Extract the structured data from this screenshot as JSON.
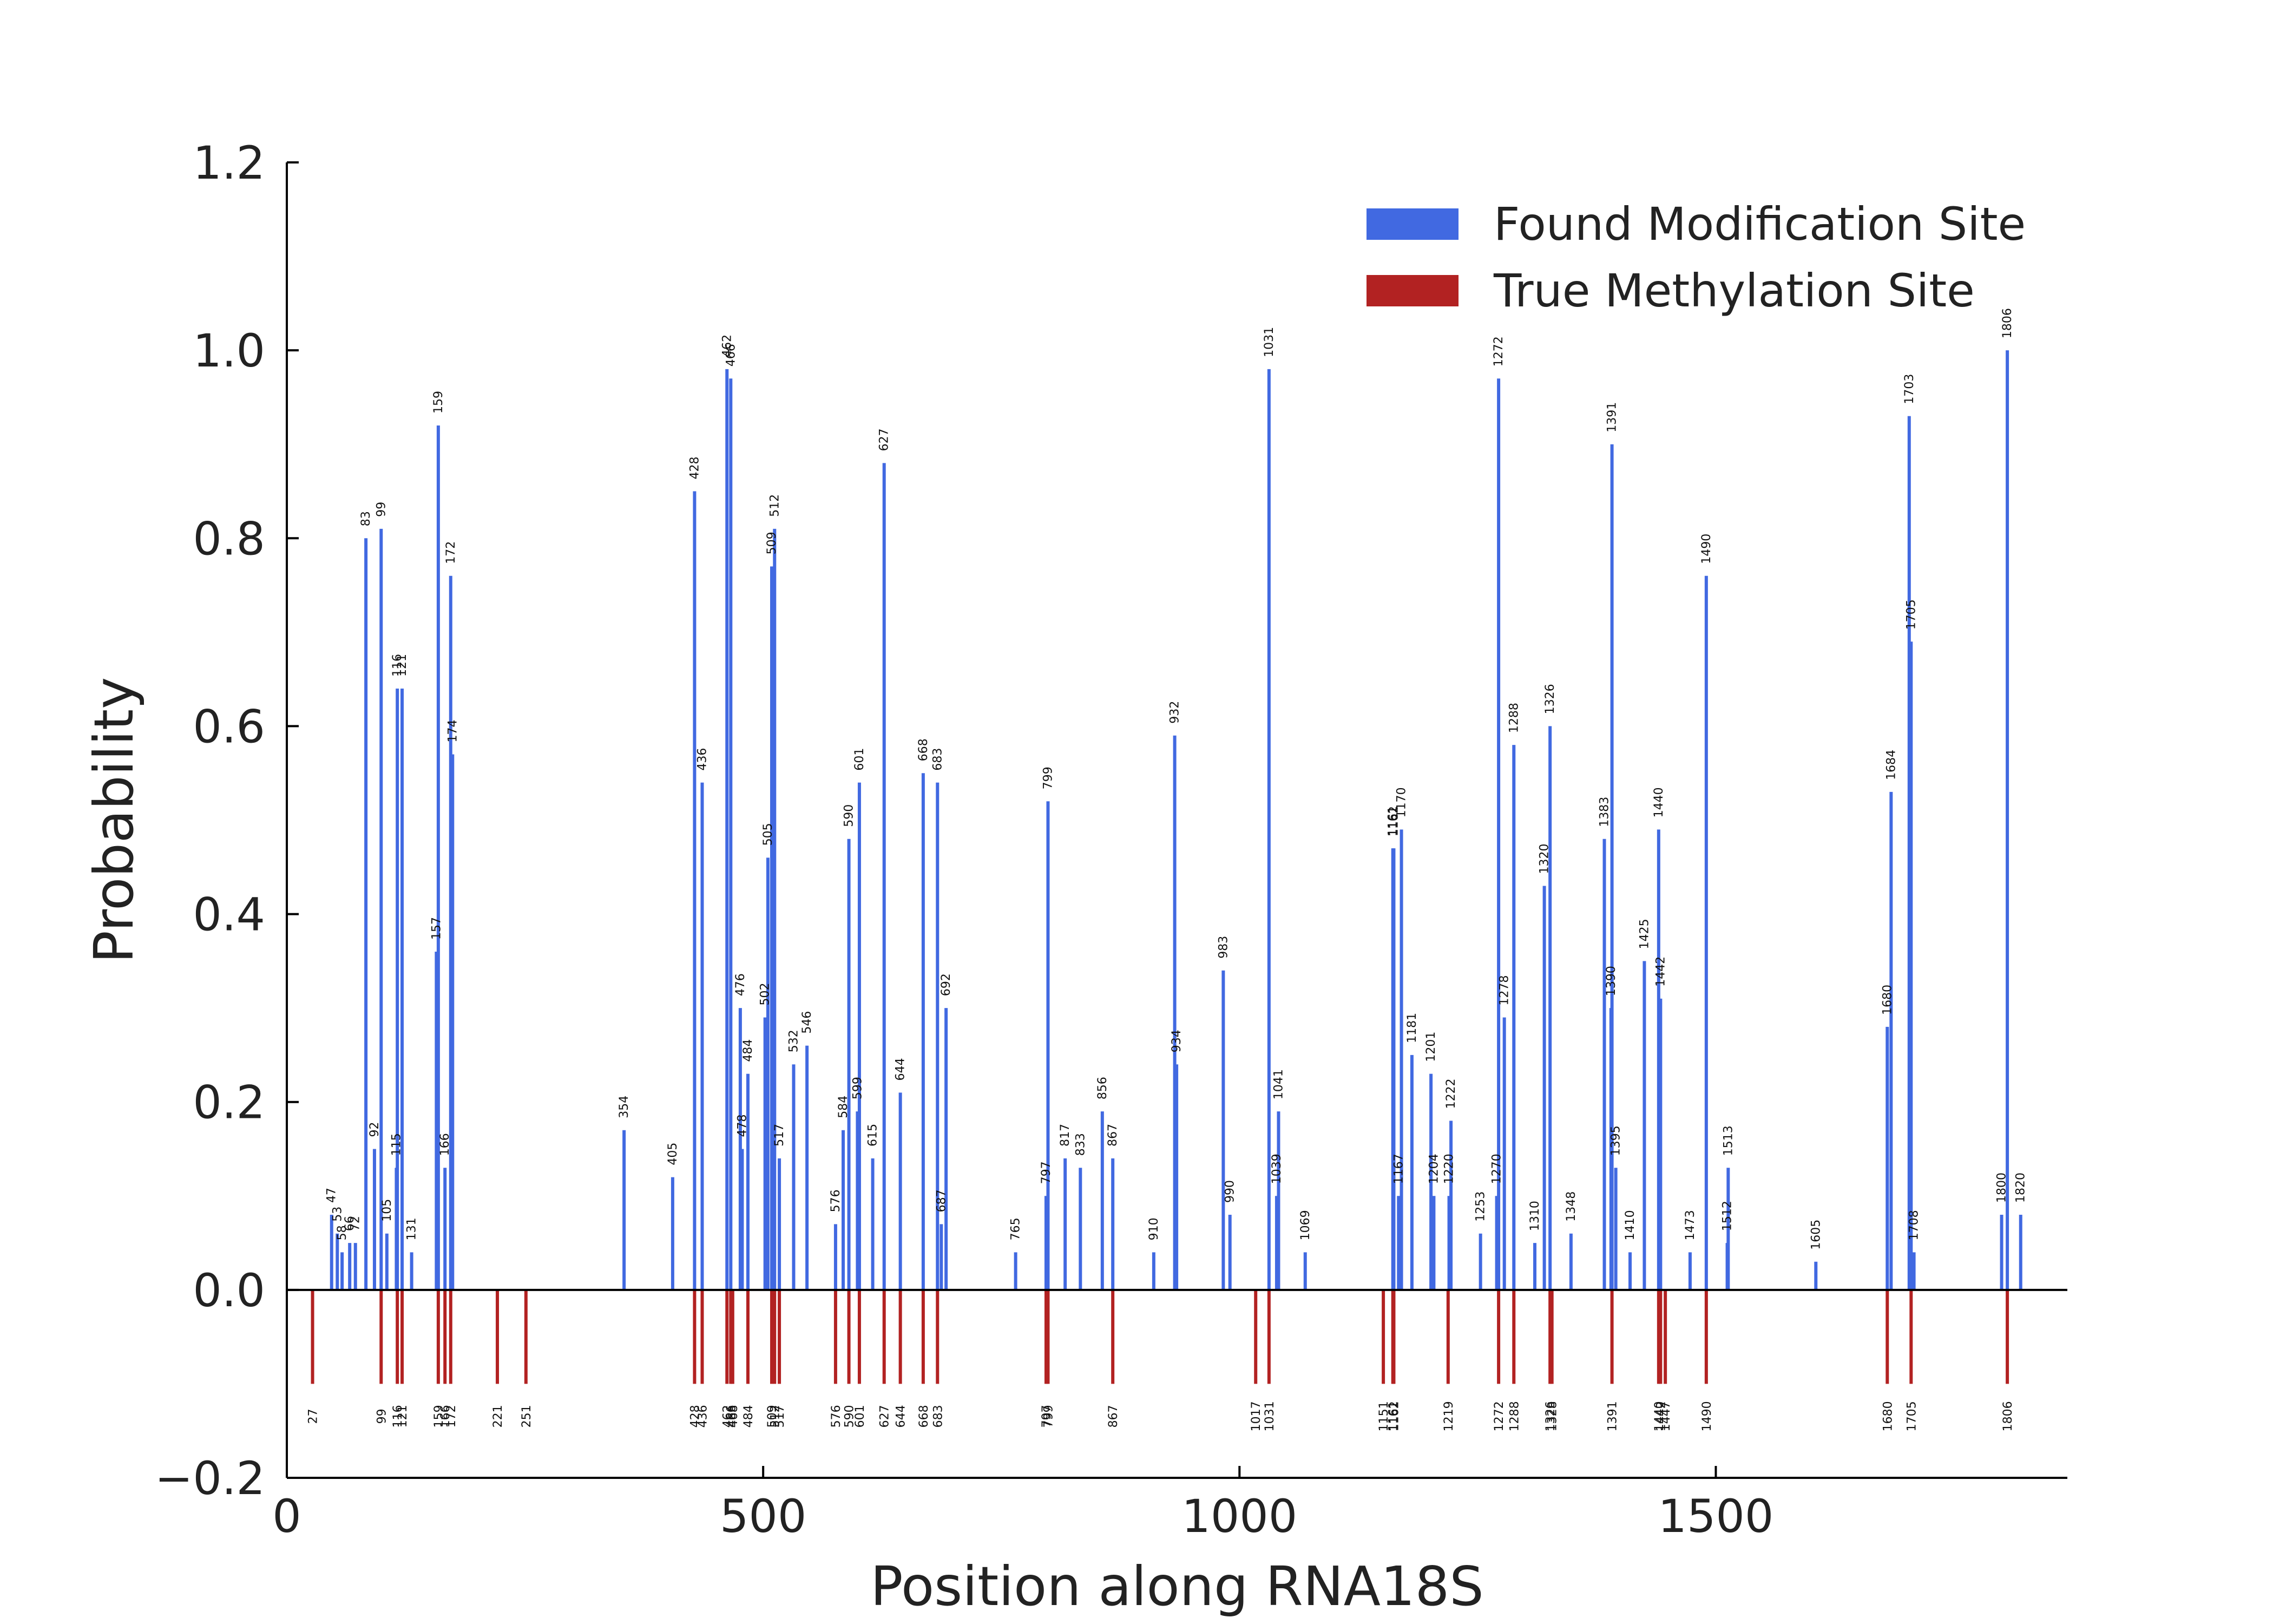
{
  "chart_data": {
    "type": "bar",
    "xlabel": "Position along RNA18S",
    "ylabel": "Probability",
    "xlim": [
      0,
      1869
    ],
    "ylim": [
      -0.2,
      1.2
    ],
    "xticks": [
      0,
      500,
      1000,
      1500
    ],
    "yticks": [
      -0.2,
      0.0,
      0.2,
      0.4,
      0.6,
      0.8,
      1.0,
      1.2
    ],
    "ytick_labels": [
      "−0.2",
      "0.0",
      "0.2",
      "0.4",
      "0.6",
      "0.8",
      "1.0",
      "1.2"
    ],
    "legend_position": "top-right",
    "series": [
      {
        "name": "Found Modification Site",
        "color": "#4169e1",
        "points": [
          {
            "x": 47,
            "y": 0.08
          },
          {
            "x": 53,
            "y": 0.06
          },
          {
            "x": 58,
            "y": 0.04
          },
          {
            "x": 66,
            "y": 0.05
          },
          {
            "x": 72,
            "y": 0.05
          },
          {
            "x": 83,
            "y": 0.8
          },
          {
            "x": 92,
            "y": 0.15
          },
          {
            "x": 99,
            "y": 0.81
          },
          {
            "x": 105,
            "y": 0.06
          },
          {
            "x": 115,
            "y": 0.13
          },
          {
            "x": 116,
            "y": 0.64
          },
          {
            "x": 121,
            "y": 0.64
          },
          {
            "x": 131,
            "y": 0.04
          },
          {
            "x": 157,
            "y": 0.36
          },
          {
            "x": 159,
            "y": 0.92
          },
          {
            "x": 166,
            "y": 0.13
          },
          {
            "x": 172,
            "y": 0.76
          },
          {
            "x": 174,
            "y": 0.57
          },
          {
            "x": 354,
            "y": 0.17
          },
          {
            "x": 405,
            "y": 0.12
          },
          {
            "x": 428,
            "y": 0.85
          },
          {
            "x": 436,
            "y": 0.54
          },
          {
            "x": 462,
            "y": 0.98
          },
          {
            "x": 466,
            "y": 0.97
          },
          {
            "x": 476,
            "y": 0.3
          },
          {
            "x": 478,
            "y": 0.15
          },
          {
            "x": 484,
            "y": 0.23
          },
          {
            "x": 502,
            "y": 0.29
          },
          {
            "x": 505,
            "y": 0.46
          },
          {
            "x": 509,
            "y": 0.77
          },
          {
            "x": 512,
            "y": 0.81
          },
          {
            "x": 517,
            "y": 0.14
          },
          {
            "x": 532,
            "y": 0.24
          },
          {
            "x": 546,
            "y": 0.26
          },
          {
            "x": 576,
            "y": 0.07
          },
          {
            "x": 584,
            "y": 0.17
          },
          {
            "x": 590,
            "y": 0.48
          },
          {
            "x": 599,
            "y": 0.19
          },
          {
            "x": 601,
            "y": 0.54
          },
          {
            "x": 615,
            "y": 0.14
          },
          {
            "x": 627,
            "y": 0.88
          },
          {
            "x": 644,
            "y": 0.21
          },
          {
            "x": 668,
            "y": 0.55
          },
          {
            "x": 683,
            "y": 0.54
          },
          {
            "x": 687,
            "y": 0.07
          },
          {
            "x": 692,
            "y": 0.3
          },
          {
            "x": 765,
            "y": 0.04
          },
          {
            "x": 797,
            "y": 0.1
          },
          {
            "x": 799,
            "y": 0.52
          },
          {
            "x": 817,
            "y": 0.14
          },
          {
            "x": 833,
            "y": 0.13
          },
          {
            "x": 856,
            "y": 0.19
          },
          {
            "x": 867,
            "y": 0.14
          },
          {
            "x": 910,
            "y": 0.04
          },
          {
            "x": 932,
            "y": 0.59
          },
          {
            "x": 934,
            "y": 0.24
          },
          {
            "x": 983,
            "y": 0.34
          },
          {
            "x": 990,
            "y": 0.08
          },
          {
            "x": 1031,
            "y": 0.98
          },
          {
            "x": 1039,
            "y": 0.1
          },
          {
            "x": 1041,
            "y": 0.19
          },
          {
            "x": 1069,
            "y": 0.04
          },
          {
            "x": 1161,
            "y": 0.47
          },
          {
            "x": 1162,
            "y": 0.47
          },
          {
            "x": 1167,
            "y": 0.1
          },
          {
            "x": 1170,
            "y": 0.49
          },
          {
            "x": 1181,
            "y": 0.25
          },
          {
            "x": 1201,
            "y": 0.23
          },
          {
            "x": 1204,
            "y": 0.1
          },
          {
            "x": 1220,
            "y": 0.1
          },
          {
            "x": 1222,
            "y": 0.18
          },
          {
            "x": 1253,
            "y": 0.06
          },
          {
            "x": 1270,
            "y": 0.1
          },
          {
            "x": 1272,
            "y": 0.97
          },
          {
            "x": 1278,
            "y": 0.29
          },
          {
            "x": 1288,
            "y": 0.58
          },
          {
            "x": 1310,
            "y": 0.05
          },
          {
            "x": 1320,
            "y": 0.43
          },
          {
            "x": 1326,
            "y": 0.6
          },
          {
            "x": 1348,
            "y": 0.06
          },
          {
            "x": 1383,
            "y": 0.48
          },
          {
            "x": 1390,
            "y": 0.3
          },
          {
            "x": 1391,
            "y": 0.9
          },
          {
            "x": 1395,
            "y": 0.13
          },
          {
            "x": 1410,
            "y": 0.04
          },
          {
            "x": 1425,
            "y": 0.35
          },
          {
            "x": 1440,
            "y": 0.49
          },
          {
            "x": 1442,
            "y": 0.31
          },
          {
            "x": 1473,
            "y": 0.04
          },
          {
            "x": 1490,
            "y": 0.76
          },
          {
            "x": 1512,
            "y": 0.05
          },
          {
            "x": 1513,
            "y": 0.13
          },
          {
            "x": 1605,
            "y": 0.03
          },
          {
            "x": 1680,
            "y": 0.28
          },
          {
            "x": 1684,
            "y": 0.53
          },
          {
            "x": 1703,
            "y": 0.93
          },
          {
            "x": 1705,
            "y": 0.69
          },
          {
            "x": 1708,
            "y": 0.04
          },
          {
            "x": 1800,
            "y": 0.08
          },
          {
            "x": 1806,
            "y": 1.0
          },
          {
            "x": 1820,
            "y": 0.08
          }
        ]
      },
      {
        "name": "True Methylation Site",
        "color": "#b22222",
        "value": -0.1,
        "positions": [
          27,
          99,
          116,
          121,
          159,
          166,
          172,
          221,
          251,
          428,
          436,
          462,
          466,
          468,
          484,
          509,
          512,
          517,
          576,
          590,
          601,
          627,
          644,
          668,
          683,
          797,
          799,
          867,
          1017,
          1031,
          1151,
          1161,
          1162,
          1219,
          1272,
          1288,
          1326,
          1328,
          1391,
          1440,
          1442,
          1447,
          1490,
          1680,
          1705,
          1806
        ]
      }
    ]
  }
}
